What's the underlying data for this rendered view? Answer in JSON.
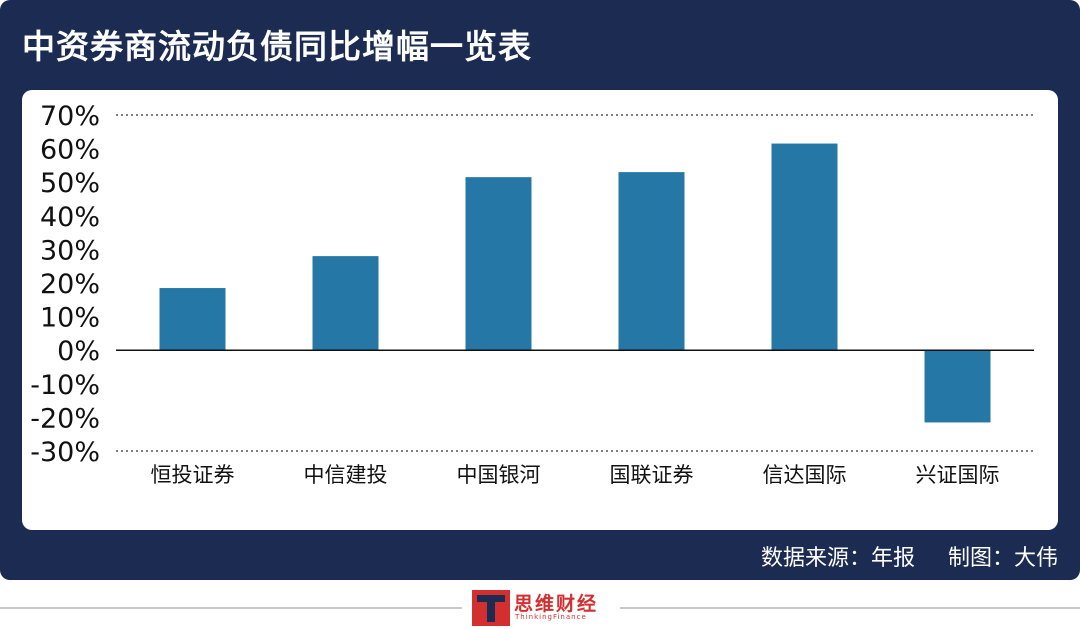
{
  "title": "中资券商流动负债同比增幅一览表",
  "footer": {
    "source": "数据来源：年报",
    "credit": "制图：大伟",
    "logo_name": "思维财经",
    "logo_subtext": "ThinkingFinance"
  },
  "colors": {
    "panel": "#1b2b52",
    "bar": "#2577a6",
    "logo": "#d32f2f"
  },
  "chart_data": {
    "type": "bar",
    "categories": [
      "恒投证券",
      "中信建投",
      "中国银河",
      "国联证券",
      "信达国际",
      "兴证国际"
    ],
    "values": [
      18.5,
      28,
      51.5,
      53,
      61.5,
      -21.5
    ],
    "ylim": [
      -30,
      70
    ],
    "yticks": [
      70,
      60,
      50,
      40,
      30,
      20,
      10,
      0,
      -10,
      -20,
      -30
    ],
    "ytick_labels": [
      "70%",
      "60%",
      "50%",
      "40%",
      "30%",
      "20%",
      "10%",
      "0%",
      "-10%",
      "-20%",
      "-30%"
    ],
    "grid": "dotted at top and bottom only",
    "legend": "none"
  }
}
